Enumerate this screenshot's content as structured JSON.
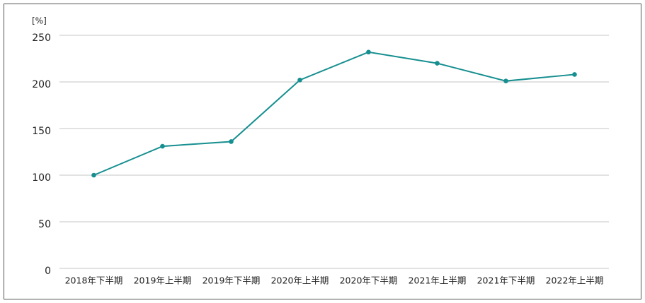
{
  "chart_data": {
    "type": "line",
    "y_label": "[%]",
    "categories": [
      "2018年下半期",
      "2019年上半期",
      "2019年下半期",
      "2020年上半期",
      "2020年下半期",
      "2021年上半期",
      "2021年下半期",
      "2022年上半期"
    ],
    "series": [
      {
        "color": "#178f90",
        "values": [
          100,
          131,
          136,
          202,
          232,
          220,
          201,
          208
        ]
      }
    ],
    "ylim": [
      0,
      250
    ],
    "yticks": [
      0,
      50,
      100,
      150,
      200,
      250
    ],
    "grid": true
  }
}
